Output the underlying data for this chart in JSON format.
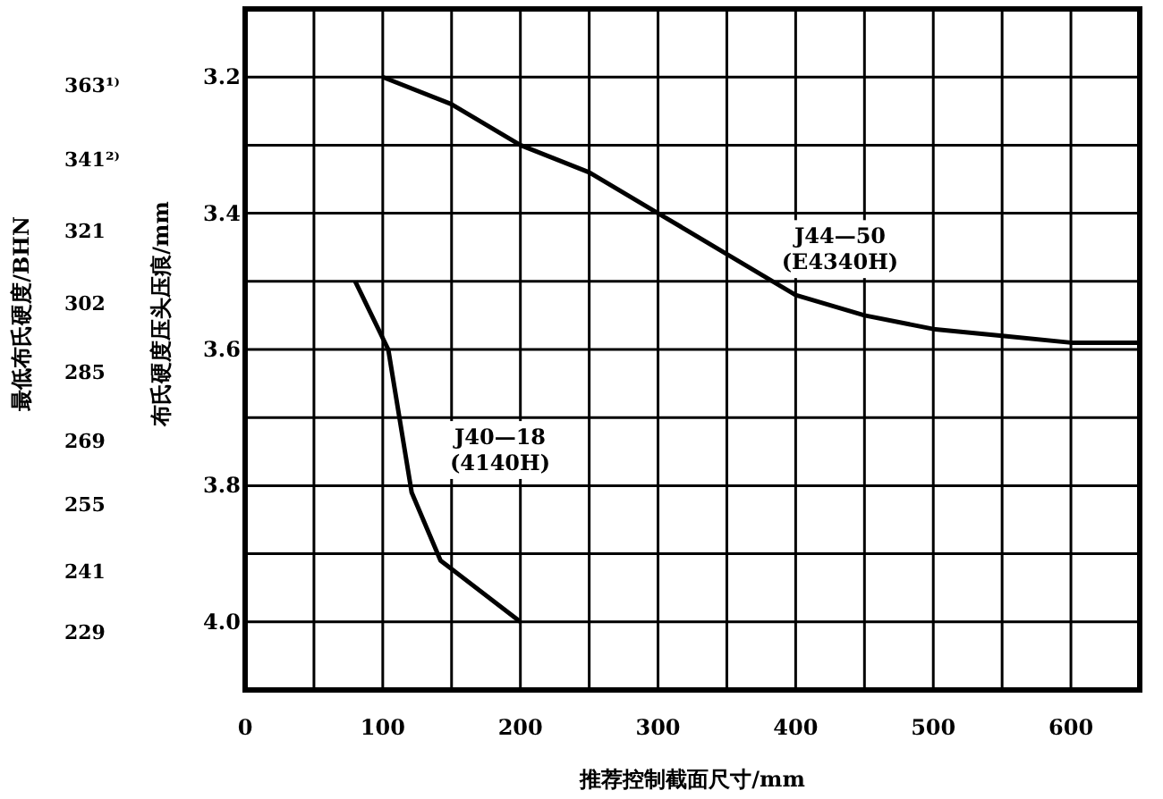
{
  "chart_data": {
    "type": "line",
    "xlabel": "推荐控制截面尺寸/mm",
    "ylabel": "布氏硬度压头压痕/mm",
    "y2label": "最低布氏硬度/BHN",
    "xlim": [
      0,
      650
    ],
    "ylim": [
      4.1,
      3.1
    ],
    "y2lim": [
      218,
      387
    ],
    "xticks": [
      0,
      {
        "value": 50,
        "label": null
      },
      100,
      {
        "value": 150,
        "label": null
      },
      200,
      {
        "value": 250,
        "label": null
      },
      300,
      {
        "value": 350,
        "label": null
      },
      400,
      {
        "value": 450,
        "label": null
      },
      500,
      {
        "value": 550,
        "label": null
      },
      600
    ],
    "yticks": [
      {
        "value": 3.2,
        "label": "3.2"
      },
      {
        "value": 3.3,
        "label": null
      },
      {
        "value": 3.4,
        "label": "3.4"
      },
      {
        "value": 3.5,
        "label": null
      },
      {
        "value": 3.6,
        "label": "3.6"
      },
      {
        "value": 3.7,
        "label": null
      },
      {
        "value": 3.8,
        "label": "3.8"
      },
      {
        "value": 3.9,
        "label": null
      },
      {
        "value": 4.0,
        "label": "4.0"
      }
    ],
    "y2ticks": [
      {
        "value": 363,
        "label": "363¹⁾"
      },
      {
        "value": 341,
        "label": "341²⁾"
      },
      321,
      302,
      285,
      269,
      255,
      241,
      229
    ],
    "grid": true,
    "log": "y2",
    "marker": "none",
    "line_style": "solid",
    "series": [
      {
        "color": "#000000",
        "x": [
          100,
          150,
          200,
          250,
          300,
          350,
          400,
          450,
          500,
          550,
          600,
          650
        ],
        "values": [
          3.2,
          3.24,
          3.3,
          3.34,
          3.4,
          3.46,
          3.52,
          3.55,
          3.57,
          3.58,
          3.59,
          3.59
        ]
      },
      {
        "color": "#000000",
        "x": [
          80,
          104,
          121,
          142,
          200
        ],
        "values": [
          3.5,
          3.6,
          3.81,
          3.91,
          4.0
        ]
      }
    ],
    "annotations": [
      "J44—50\n(E4340H)",
      "J40—18\n(4140H)"
    ]
  }
}
